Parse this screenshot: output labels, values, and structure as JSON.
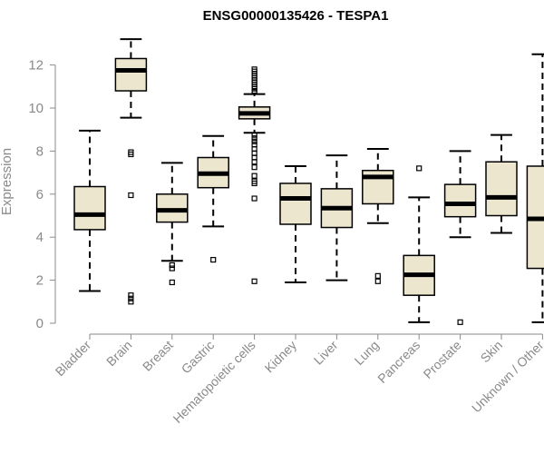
{
  "chart_data": {
    "type": "boxplot",
    "title": "ENSG00000135426 - TESPA1",
    "xlabel": "",
    "ylabel": "Expression",
    "ylim": [
      0,
      12.5
    ],
    "yticks": [
      0,
      2,
      4,
      6,
      8,
      10,
      12
    ],
    "box_fill": "#ede6cf",
    "categories": [
      "Bladder",
      "Brain",
      "Breast",
      "Gastric",
      "Hematopoietic cells",
      "Kidney",
      "Liver",
      "Lung",
      "Pancreas",
      "Prostate",
      "Skin",
      "Unknown / Other"
    ],
    "boxes": [
      {
        "whisker_low": 1.5,
        "q1": 4.35,
        "median": 5.05,
        "q3": 6.35,
        "whisker_high": 8.95,
        "outliers": []
      },
      {
        "whisker_low": 9.55,
        "q1": 10.8,
        "median": 11.75,
        "q3": 12.3,
        "whisker_high": 13.2,
        "outliers": [
          7.95,
          7.85,
          5.95,
          1.3,
          1.15,
          1.0
        ]
      },
      {
        "whisker_low": 2.9,
        "q1": 4.7,
        "median": 5.25,
        "q3": 6.0,
        "whisker_high": 7.45,
        "outliers": [
          2.7,
          2.55,
          1.9
        ]
      },
      {
        "whisker_low": 4.5,
        "q1": 6.3,
        "median": 6.95,
        "q3": 7.7,
        "whisker_high": 8.7,
        "outliers": [
          2.95
        ]
      },
      {
        "whisker_low": 8.85,
        "q1": 9.5,
        "median": 9.75,
        "q3": 10.05,
        "whisker_high": 10.65,
        "outliers": [
          11.8,
          11.7,
          11.6,
          11.5,
          11.4,
          11.3,
          11.2,
          11.1,
          11.0,
          10.9,
          10.8,
          10.75,
          8.75,
          8.6,
          8.45,
          8.3,
          8.1,
          7.9,
          7.7,
          7.5,
          7.25,
          6.85,
          6.6,
          6.5,
          5.8,
          1.95
        ]
      },
      {
        "whisker_low": 1.9,
        "q1": 4.6,
        "median": 5.8,
        "q3": 6.5,
        "whisker_high": 7.3,
        "outliers": []
      },
      {
        "whisker_low": 2.0,
        "q1": 4.45,
        "median": 5.35,
        "q3": 6.25,
        "whisker_high": 7.8,
        "outliers": []
      },
      {
        "whisker_low": 4.65,
        "q1": 5.55,
        "median": 6.8,
        "q3": 7.1,
        "whisker_high": 8.1,
        "outliers": [
          2.2,
          1.95
        ]
      },
      {
        "whisker_low": 0.05,
        "q1": 1.3,
        "median": 2.25,
        "q3": 3.15,
        "whisker_high": 5.85,
        "outliers": [
          7.2
        ]
      },
      {
        "whisker_low": 4.0,
        "q1": 4.95,
        "median": 5.55,
        "q3": 6.45,
        "whisker_high": 8.0,
        "outliers": [
          0.05
        ]
      },
      {
        "whisker_low": 4.2,
        "q1": 5.0,
        "median": 5.85,
        "q3": 7.5,
        "whisker_high": 8.75,
        "outliers": []
      },
      {
        "whisker_low": 0.05,
        "q1": 2.55,
        "median": 4.85,
        "q3": 7.3,
        "whisker_high": 12.5,
        "outliers": []
      }
    ]
  }
}
